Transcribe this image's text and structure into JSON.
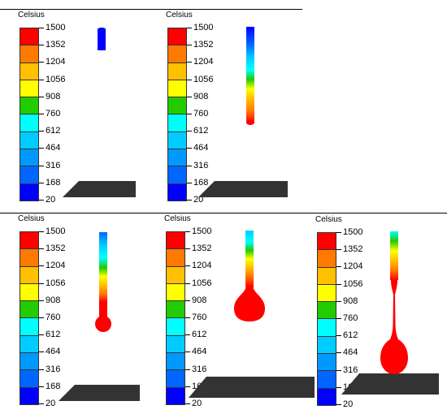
{
  "unit_label": "Celsius",
  "scale": {
    "ticks": [
      "1500",
      "1352",
      "1204",
      "1056",
      "908",
      "760",
      "612",
      "464",
      "316",
      "168",
      "20"
    ],
    "band_colors": [
      "#ff0000",
      "#ff7a00",
      "#ffc000",
      "#ffff00",
      "#22cc00",
      "#00ffff",
      "#00ccff",
      "#0099ff",
      "#0066ff",
      "#0000ff"
    ]
  },
  "colors": {
    "plate": "#333333",
    "hot_metal": "#ff0000",
    "cold_wire": "#0000ff"
  },
  "panels": [
    {
      "stage": "wire-preheat"
    },
    {
      "stage": "wire-heating"
    },
    {
      "stage": "droplet-forming"
    },
    {
      "stage": "droplet-growing"
    },
    {
      "stage": "droplet-detaching"
    }
  ]
}
